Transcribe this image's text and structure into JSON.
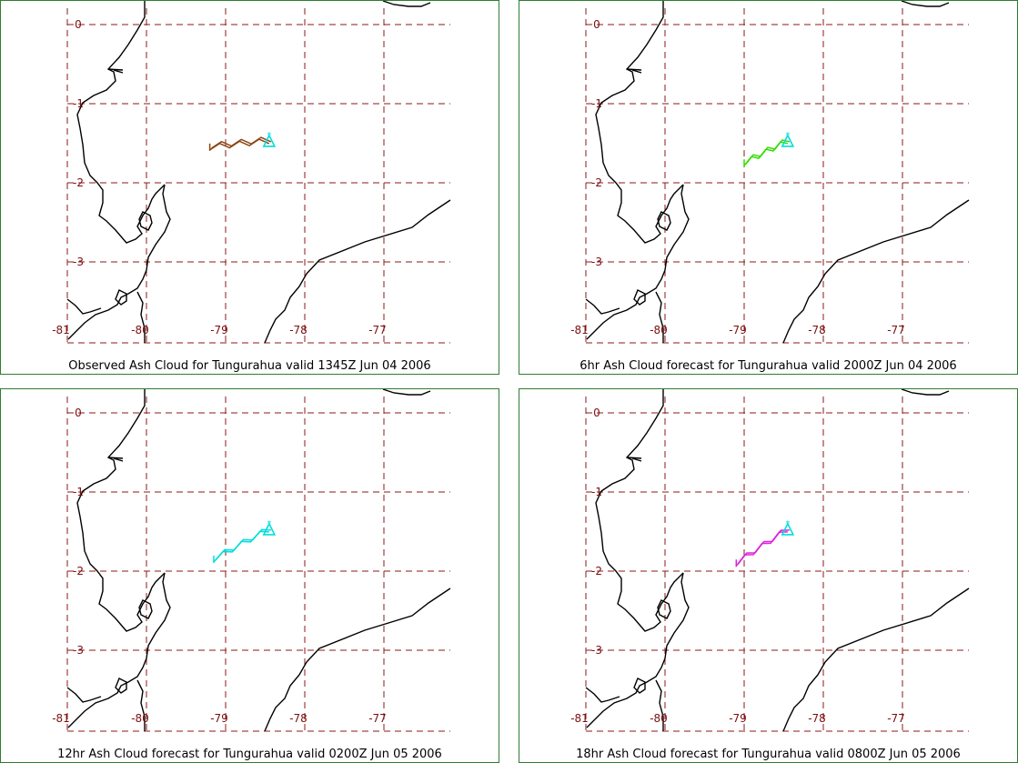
{
  "panels": [
    {
      "caption": "Observed Ash Cloud for Tungurahua valid 1345Z Jun 04 2006",
      "cloud_color": "#8b4513",
      "cloud_start": [
        -79.2,
        -1.55
      ]
    },
    {
      "caption": "6hr Ash Cloud forecast for Tungurahua valid 2000Z Jun 04 2006",
      "cloud_color": "#33dd00",
      "cloud_start": [
        -79.0,
        -1.75
      ]
    },
    {
      "caption": "12hr Ash Cloud forecast for Tungurahua valid 0200Z Jun 05 2006",
      "cloud_color": "#00dddd",
      "cloud_start": [
        -79.15,
        -1.85
      ]
    },
    {
      "caption": "18hr Ash Cloud forecast for Tungurahua valid 0800Z Jun 05 2006",
      "cloud_color": "#dd22dd",
      "cloud_start": [
        -79.1,
        -1.9
      ]
    }
  ],
  "volcano": {
    "name": "Tungurahua",
    "lon": -78.45,
    "lat": -1.47,
    "color": "#00dddd"
  },
  "grid": {
    "lon_labels": [
      "-81",
      "-80",
      "-79",
      "-78",
      "-77"
    ],
    "lat_labels": [
      "0",
      "-1",
      "-2",
      "-3"
    ],
    "lon_values": [
      -81,
      -80,
      -79,
      -78,
      -77
    ],
    "lat_values": [
      0,
      -1,
      -2,
      -3
    ],
    "line_color": "#8b1a1a",
    "label_color": "#7b1010"
  },
  "map_colors": {
    "coast": "#000000",
    "border": "#2e7d32"
  }
}
